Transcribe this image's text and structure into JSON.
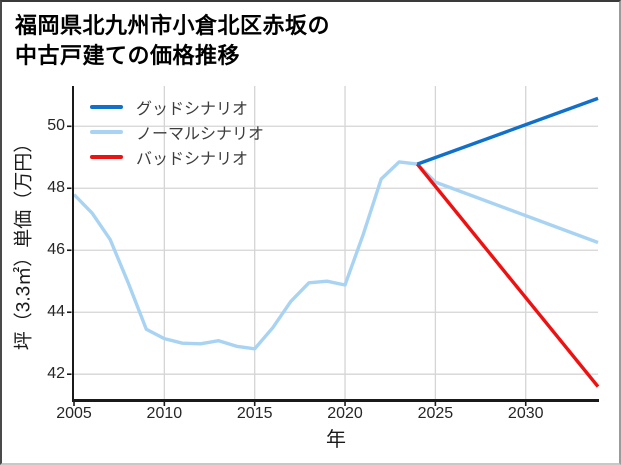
{
  "header": {
    "title_lines": [
      "福岡県北九州市小倉北区赤坂の",
      "中古戸建ての価格推移"
    ]
  },
  "chart_data": {
    "type": "line",
    "title": "福岡県北九州市小倉北区赤坂の中古戸建ての価格推移",
    "xlabel": "年",
    "ylabel": "坪（3.3㎡）単価（万円）",
    "xlim": [
      2005,
      2034
    ],
    "ylim": [
      41.2,
      51.3
    ],
    "xticks": [
      2005,
      2010,
      2015,
      2020,
      2025,
      2030
    ],
    "yticks": [
      42,
      44,
      46,
      48,
      50
    ],
    "grid": true,
    "grid_color": "#d5d5d5",
    "axis_color": "#1a1a1a",
    "tick_label_color": "#262626",
    "series": [
      {
        "id": "normal",
        "name": "ノーマルシナリオ",
        "color": "#a9d3f2",
        "line_width": 3.4,
        "x": [
          2005,
          2006,
          2007,
          2008,
          2009,
          2010,
          2011,
          2012,
          2013,
          2014,
          2015,
          2016,
          2017,
          2018,
          2019,
          2020,
          2021,
          2022,
          2023,
          2024,
          2025,
          2034
        ],
        "y": [
          47.8,
          47.2,
          46.35,
          44.95,
          43.45,
          43.15,
          43.0,
          42.98,
          43.08,
          42.9,
          42.82,
          43.5,
          44.35,
          44.95,
          45.0,
          44.88,
          46.5,
          48.3,
          48.85,
          48.78,
          48.2,
          46.25
        ]
      },
      {
        "id": "bad",
        "name": "バッドシナリオ",
        "color": "#ee1111",
        "line_width": 3.4,
        "x": [
          2024,
          2034
        ],
        "y": [
          48.78,
          41.6
        ]
      },
      {
        "id": "good",
        "name": "グッドシナリオ",
        "color": "#1170c9",
        "line_width": 3.4,
        "x": [
          2024,
          2034
        ],
        "y": [
          48.78,
          50.9
        ]
      }
    ],
    "legend": {
      "position": "upper-left",
      "items": [
        {
          "id": "good",
          "label": "グッドシナリオ",
          "color": "#1170c9"
        },
        {
          "id": "normal",
          "label": "ノーマルシナリオ",
          "color": "#a9d3f2"
        },
        {
          "id": "bad",
          "label": "バッドシナリオ",
          "color": "#ee1111"
        }
      ]
    }
  }
}
